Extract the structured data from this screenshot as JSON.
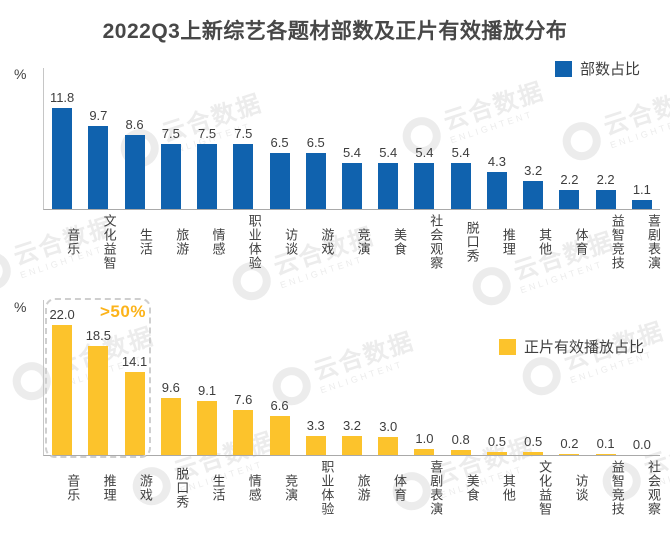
{
  "title": "2022Q3上新综艺各题材部数及正片有效播放分布",
  "colors": {
    "bar_blue": "#1062ae",
    "bar_yellow": "#fcc32c",
    "annotation": "#fcb31a",
    "title_text": "#474747",
    "label_text": "#3d3d3d",
    "axis_line": "#a9a9a9",
    "watermark": "#ececec"
  },
  "watermark": {
    "name": "云合数据",
    "subtitle": "ENLIGHTENT"
  },
  "annotation": {
    "text": ">50%",
    "applies_to_first_n_bars": 3
  },
  "chart_data": [
    {
      "type": "bar",
      "legend": "部数占比",
      "unit": "%",
      "bar_color": "#1062ae",
      "categories": [
        "音乐",
        "文化益智",
        "生活",
        "旅游",
        "情感",
        "职业体验",
        "访谈",
        "游戏",
        "竞演",
        "美食",
        "社会观察",
        "脱口秀",
        "推理",
        "其他",
        "体育",
        "益智竞技",
        "喜剧表演"
      ],
      "values": [
        11.8,
        9.7,
        8.6,
        7.5,
        7.5,
        7.5,
        6.5,
        6.5,
        5.4,
        5.4,
        5.4,
        5.4,
        4.3,
        3.2,
        2.2,
        2.2,
        1.1
      ],
      "ylim": [
        0,
        13
      ],
      "grid": false,
      "legend_position": "top-right"
    },
    {
      "type": "bar",
      "legend": "正片有效播放占比",
      "unit": "%",
      "bar_color": "#fcc32c",
      "categories": [
        "音乐",
        "推理",
        "游戏",
        "脱口秀",
        "生活",
        "情感",
        "竞演",
        "职业体验",
        "旅游",
        "体育",
        "喜剧表演",
        "美食",
        "其他",
        "文化益智",
        "访谈",
        "益智竞技",
        "社会观察"
      ],
      "values": [
        22.0,
        18.5,
        14.1,
        9.6,
        9.1,
        7.6,
        6.6,
        3.3,
        3.2,
        3.0,
        1.0,
        0.8,
        0.5,
        0.5,
        0.2,
        0.1,
        0.0
      ],
      "ylim": [
        0,
        24
      ],
      "grid": false,
      "legend_position": "inside-right"
    }
  ]
}
